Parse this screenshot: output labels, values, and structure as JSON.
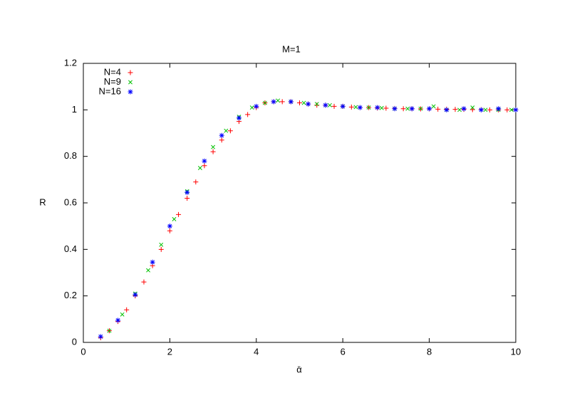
{
  "chart_data": {
    "type": "scatter",
    "title": "M=1",
    "x_label": "ᾱ",
    "y_label": "R",
    "xlim": [
      0,
      10
    ],
    "ylim": [
      0,
      1.2
    ],
    "xticks": [
      0,
      2,
      4,
      6,
      8,
      10
    ],
    "yticks": [
      0,
      0.2,
      0.4,
      0.6,
      0.8,
      1,
      1.2
    ],
    "legend": "top-left",
    "series": [
      {
        "name": "N=4",
        "color": "#ff0000",
        "marker": "plus",
        "x": [
          0.4,
          0.6,
          0.8,
          1.0,
          1.2,
          1.4,
          1.6,
          1.8,
          2.0,
          2.2,
          2.4,
          2.6,
          2.8,
          3.0,
          3.2,
          3.4,
          3.6,
          3.8,
          4.0,
          4.2,
          4.4,
          4.6,
          4.8,
          5.0,
          5.2,
          5.4,
          5.6,
          5.8,
          6.0,
          6.2,
          6.4,
          6.6,
          6.8,
          7.0,
          7.2,
          7.4,
          7.6,
          7.8,
          8.0,
          8.2,
          8.4,
          8.6,
          8.8,
          9.0,
          9.2,
          9.4,
          9.6,
          9.8,
          10.0
        ],
        "values": [
          0.02,
          0.05,
          0.09,
          0.14,
          0.2,
          0.26,
          0.33,
          0.4,
          0.48,
          0.55,
          0.62,
          0.69,
          0.76,
          0.82,
          0.87,
          0.91,
          0.95,
          0.98,
          1.01,
          1.03,
          1.035,
          1.035,
          1.035,
          1.03,
          1.025,
          1.02,
          1.02,
          1.015,
          1.015,
          1.012,
          1.01,
          1.01,
          1.008,
          1.007,
          1.006,
          1.005,
          1.005,
          1.004,
          1.004,
          1.003,
          1.003,
          1.002,
          1.002,
          1.001,
          1.001,
          1.0,
          1.0,
          1.0,
          1.0
        ]
      },
      {
        "name": "N=9",
        "color": "#00c000",
        "marker": "cross",
        "x": [
          0.6,
          0.9,
          1.2,
          1.5,
          1.8,
          2.1,
          2.4,
          2.7,
          3.0,
          3.3,
          3.6,
          3.9,
          4.2,
          4.5,
          4.8,
          5.1,
          5.4,
          5.7,
          6.0,
          6.3,
          6.6,
          6.9,
          7.2,
          7.5,
          7.8,
          8.1,
          8.4,
          8.7,
          9.0,
          9.3,
          9.6,
          9.9
        ],
        "values": [
          0.05,
          0.12,
          0.21,
          0.31,
          0.42,
          0.53,
          0.65,
          0.75,
          0.84,
          0.91,
          0.97,
          1.01,
          1.03,
          1.04,
          1.035,
          1.03,
          1.025,
          1.02,
          1.015,
          1.012,
          1.01,
          1.008,
          1.005,
          1.005,
          1.005,
          1.015,
          1.0,
          1.0,
          1.01,
          1.0,
          1.0,
          1.0
        ]
      },
      {
        "name": "N=16",
        "color": "#0000ff",
        "marker": "star",
        "x": [
          0.4,
          0.8,
          1.2,
          1.6,
          2.0,
          2.4,
          2.8,
          3.2,
          3.6,
          4.0,
          4.4,
          4.8,
          5.2,
          5.6,
          6.0,
          6.4,
          6.8,
          7.2,
          7.6,
          8.0,
          8.4,
          8.8,
          9.2,
          9.6,
          10.0
        ],
        "values": [
          0.025,
          0.095,
          0.205,
          0.345,
          0.5,
          0.645,
          0.78,
          0.89,
          0.965,
          1.015,
          1.035,
          1.035,
          1.025,
          1.02,
          1.015,
          1.01,
          1.01,
          1.005,
          1.005,
          1.005,
          1.0,
          1.005,
          1.0,
          1.005,
          1.0
        ]
      }
    ]
  }
}
